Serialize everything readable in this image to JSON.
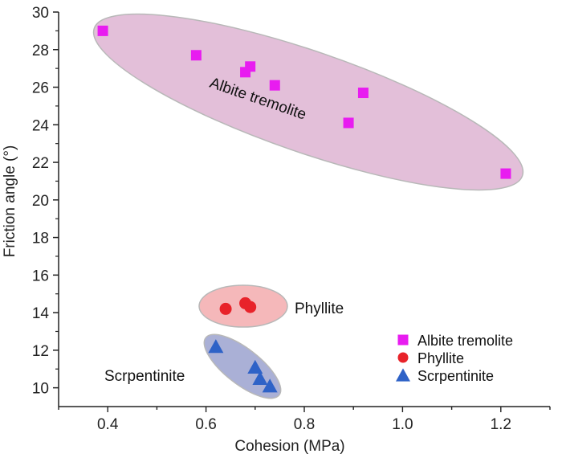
{
  "chart_data": {
    "type": "scatter",
    "xlabel": "Cohesion (MPa)",
    "ylabel": "Friction angle (°)",
    "xlim": [
      0.3,
      1.3
    ],
    "ylim": [
      9,
      30
    ],
    "x_ticks": [
      0.4,
      0.6,
      0.8,
      1.0,
      1.2
    ],
    "x_tick_labels": [
      "0.4",
      "0.6",
      "0.8",
      "1.0",
      "1.2"
    ],
    "y_ticks": [
      10,
      12,
      14,
      16,
      18,
      20,
      22,
      24,
      26,
      28,
      30
    ],
    "y_tick_labels": [
      "10",
      "12",
      "14",
      "16",
      "18",
      "20",
      "22",
      "24",
      "26",
      "28",
      "30"
    ],
    "grid": false,
    "legend_position": "bottom-right",
    "series": [
      {
        "name": "Albite tremolite",
        "marker": "square",
        "color": "#e81cf0",
        "cluster_label": "Albite tremolite",
        "cluster_color": "#e3bfd9",
        "points": [
          {
            "x": 0.39,
            "y": 29.0
          },
          {
            "x": 0.58,
            "y": 27.7
          },
          {
            "x": 0.68,
            "y": 26.8
          },
          {
            "x": 0.69,
            "y": 27.1
          },
          {
            "x": 0.74,
            "y": 26.1
          },
          {
            "x": 0.89,
            "y": 24.1
          },
          {
            "x": 0.92,
            "y": 25.7
          },
          {
            "x": 1.21,
            "y": 21.4
          }
        ]
      },
      {
        "name": "Phyllite",
        "marker": "circle",
        "color": "#e8232a",
        "cluster_label": "Phyllite",
        "cluster_color": "#f5b8ba",
        "points": [
          {
            "x": 0.64,
            "y": 14.2
          },
          {
            "x": 0.68,
            "y": 14.5
          },
          {
            "x": 0.69,
            "y": 14.3
          }
        ]
      },
      {
        "name": "Scrpentinite",
        "marker": "triangle",
        "color": "#2e62c7",
        "cluster_label": "Scrpentinite",
        "cluster_color": "#aab0d6",
        "points": [
          {
            "x": 0.62,
            "y": 12.2
          },
          {
            "x": 0.7,
            "y": 11.1
          },
          {
            "x": 0.71,
            "y": 10.5
          },
          {
            "x": 0.73,
            "y": 10.1
          }
        ]
      }
    ]
  }
}
